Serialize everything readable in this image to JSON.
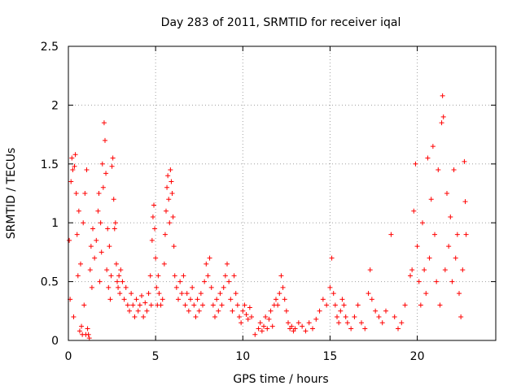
{
  "chart_data": {
    "type": "scatter",
    "title": "Day 283 of 2011, SRMTID for receiver iqal",
    "xlabel": "GPS time / hours",
    "ylabel": "SRMTID / TECUs",
    "xlim": [
      0,
      24.5
    ],
    "ylim": [
      0,
      2.5
    ],
    "xticks": [
      0,
      5,
      10,
      15,
      20
    ],
    "yticks": [
      0,
      0.5,
      1,
      1.5,
      2,
      2.5
    ],
    "xtick_labels": [
      "0",
      "5",
      "10",
      "15",
      "20"
    ],
    "ytick_labels": [
      "0",
      "0.5",
      "1",
      "1.5",
      "2",
      "2.5"
    ],
    "grid": true,
    "marker": "plus",
    "color": "#ff0000",
    "series": [
      {
        "name": "SRMTID",
        "points": [
          [
            0.05,
            0.85
          ],
          [
            0.1,
            0.35
          ],
          [
            0.15,
            1.35
          ],
          [
            0.2,
            1.55
          ],
          [
            0.25,
            1.45
          ],
          [
            0.3,
            0.2
          ],
          [
            0.35,
            1.48
          ],
          [
            0.4,
            1.58
          ],
          [
            0.45,
            1.25
          ],
          [
            0.5,
            0.9
          ],
          [
            0.55,
            0.55
          ],
          [
            0.6,
            1.1
          ],
          [
            0.65,
            0.08
          ],
          [
            0.7,
            0.65
          ],
          [
            0.75,
            0.12
          ],
          [
            0.8,
            0.05
          ],
          [
            0.85,
            1.0
          ],
          [
            0.9,
            0.3
          ],
          [
            0.95,
            1.25
          ],
          [
            1.0,
            0.05
          ],
          [
            1.05,
            1.45
          ],
          [
            1.1,
            0.1
          ],
          [
            1.15,
            0.05
          ],
          [
            1.2,
            0.02
          ],
          [
            1.25,
            0.6
          ],
          [
            1.3,
            0.8
          ],
          [
            1.35,
            0.45
          ],
          [
            1.4,
            0.95
          ],
          [
            1.5,
            0.7
          ],
          [
            1.6,
            0.85
          ],
          [
            1.7,
            1.1
          ],
          [
            1.75,
            1.25
          ],
          [
            1.8,
            0.5
          ],
          [
            1.85,
            1.0
          ],
          [
            1.9,
            0.75
          ],
          [
            1.95,
            1.5
          ],
          [
            2.0,
            1.3
          ],
          [
            2.05,
            1.85
          ],
          [
            2.1,
            1.7
          ],
          [
            2.15,
            1.42
          ],
          [
            2.2,
            0.6
          ],
          [
            2.25,
            0.95
          ],
          [
            2.3,
            0.45
          ],
          [
            2.35,
            0.8
          ],
          [
            2.4,
            0.35
          ],
          [
            2.45,
            0.55
          ],
          [
            2.5,
            1.48
          ],
          [
            2.55,
            1.55
          ],
          [
            2.6,
            1.2
          ],
          [
            2.65,
            0.95
          ],
          [
            2.7,
            1.0
          ],
          [
            2.75,
            0.65
          ],
          [
            2.8,
            0.5
          ],
          [
            2.85,
            0.45
          ],
          [
            2.9,
            0.55
          ],
          [
            2.95,
            0.4
          ],
          [
            3.0,
            0.6
          ],
          [
            3.1,
            0.5
          ],
          [
            3.2,
            0.35
          ],
          [
            3.3,
            0.45
          ],
          [
            3.4,
            0.3
          ],
          [
            3.5,
            0.25
          ],
          [
            3.6,
            0.4
          ],
          [
            3.7,
            0.3
          ],
          [
            3.8,
            0.2
          ],
          [
            3.9,
            0.35
          ],
          [
            4.0,
            0.25
          ],
          [
            4.1,
            0.3
          ],
          [
            4.2,
            0.38
          ],
          [
            4.3,
            0.2
          ],
          [
            4.4,
            0.32
          ],
          [
            4.5,
            0.25
          ],
          [
            4.6,
            0.4
          ],
          [
            4.7,
            0.55
          ],
          [
            4.75,
            0.3
          ],
          [
            4.8,
            0.85
          ],
          [
            4.85,
            1.05
          ],
          [
            4.9,
            1.15
          ],
          [
            4.95,
            0.95
          ],
          [
            5.0,
            0.7
          ],
          [
            5.05,
            0.45
          ],
          [
            5.1,
            0.3
          ],
          [
            5.15,
            0.55
          ],
          [
            5.2,
            0.4
          ],
          [
            5.3,
            0.3
          ],
          [
            5.4,
            0.35
          ],
          [
            5.5,
            0.65
          ],
          [
            5.55,
            0.9
          ],
          [
            5.6,
            1.1
          ],
          [
            5.65,
            1.3
          ],
          [
            5.7,
            1.4
          ],
          [
            5.75,
            1.2
          ],
          [
            5.8,
            1.0
          ],
          [
            5.85,
            1.45
          ],
          [
            5.9,
            1.35
          ],
          [
            5.95,
            1.25
          ],
          [
            6.0,
            1.05
          ],
          [
            6.05,
            0.8
          ],
          [
            6.1,
            0.55
          ],
          [
            6.2,
            0.45
          ],
          [
            6.3,
            0.35
          ],
          [
            6.4,
            0.5
          ],
          [
            6.5,
            0.4
          ],
          [
            6.6,
            0.55
          ],
          [
            6.7,
            0.3
          ],
          [
            6.8,
            0.4
          ],
          [
            6.9,
            0.25
          ],
          [
            7.0,
            0.35
          ],
          [
            7.1,
            0.45
          ],
          [
            7.2,
            0.3
          ],
          [
            7.3,
            0.2
          ],
          [
            7.4,
            0.35
          ],
          [
            7.5,
            0.25
          ],
          [
            7.6,
            0.4
          ],
          [
            7.7,
            0.3
          ],
          [
            7.8,
            0.5
          ],
          [
            7.9,
            0.65
          ],
          [
            8.0,
            0.55
          ],
          [
            8.1,
            0.7
          ],
          [
            8.2,
            0.45
          ],
          [
            8.3,
            0.3
          ],
          [
            8.4,
            0.2
          ],
          [
            8.5,
            0.35
          ],
          [
            8.6,
            0.25
          ],
          [
            8.7,
            0.4
          ],
          [
            8.8,
            0.3
          ],
          [
            8.9,
            0.45
          ],
          [
            9.0,
            0.55
          ],
          [
            9.1,
            0.65
          ],
          [
            9.2,
            0.5
          ],
          [
            9.3,
            0.35
          ],
          [
            9.4,
            0.25
          ],
          [
            9.5,
            0.55
          ],
          [
            9.6,
            0.4
          ],
          [
            9.7,
            0.3
          ],
          [
            9.8,
            0.2
          ],
          [
            9.9,
            0.15
          ],
          [
            10.0,
            0.25
          ],
          [
            10.1,
            0.3
          ],
          [
            10.2,
            0.22
          ],
          [
            10.3,
            0.18
          ],
          [
            10.4,
            0.28
          ],
          [
            10.5,
            0.2
          ],
          [
            10.7,
            0.05
          ],
          [
            10.9,
            0.1
          ],
          [
            11.0,
            0.15
          ],
          [
            11.1,
            0.08
          ],
          [
            11.2,
            0.12
          ],
          [
            11.3,
            0.2
          ],
          [
            11.4,
            0.1
          ],
          [
            11.5,
            0.18
          ],
          [
            11.6,
            0.25
          ],
          [
            11.7,
            0.12
          ],
          [
            11.8,
            0.3
          ],
          [
            11.9,
            0.35
          ],
          [
            12.0,
            0.3
          ],
          [
            12.1,
            0.4
          ],
          [
            12.2,
            0.55
          ],
          [
            12.3,
            0.45
          ],
          [
            12.4,
            0.35
          ],
          [
            12.5,
            0.25
          ],
          [
            12.6,
            0.15
          ],
          [
            12.7,
            0.1
          ],
          [
            12.8,
            0.12
          ],
          [
            12.9,
            0.08
          ],
          [
            13.0,
            0.1
          ],
          [
            13.2,
            0.15
          ],
          [
            13.4,
            0.12
          ],
          [
            13.6,
            0.08
          ],
          [
            13.8,
            0.15
          ],
          [
            14.0,
            0.1
          ],
          [
            14.2,
            0.18
          ],
          [
            14.4,
            0.25
          ],
          [
            14.6,
            0.35
          ],
          [
            14.8,
            0.3
          ],
          [
            15.0,
            0.45
          ],
          [
            15.1,
            0.7
          ],
          [
            15.2,
            0.4
          ],
          [
            15.3,
            0.3
          ],
          [
            15.4,
            0.2
          ],
          [
            15.5,
            0.15
          ],
          [
            15.6,
            0.25
          ],
          [
            15.7,
            0.35
          ],
          [
            15.8,
            0.3
          ],
          [
            15.9,
            0.2
          ],
          [
            16.0,
            0.15
          ],
          [
            16.2,
            0.1
          ],
          [
            16.4,
            0.2
          ],
          [
            16.6,
            0.3
          ],
          [
            16.8,
            0.15
          ],
          [
            17.0,
            0.1
          ],
          [
            17.2,
            0.4
          ],
          [
            17.3,
            0.6
          ],
          [
            17.4,
            0.35
          ],
          [
            17.6,
            0.25
          ],
          [
            17.8,
            0.2
          ],
          [
            18.0,
            0.15
          ],
          [
            18.2,
            0.25
          ],
          [
            18.5,
            0.9
          ],
          [
            18.7,
            0.2
          ],
          [
            18.9,
            0.1
          ],
          [
            19.1,
            0.15
          ],
          [
            19.3,
            0.3
          ],
          [
            19.6,
            0.55
          ],
          [
            19.7,
            0.6
          ],
          [
            19.8,
            1.1
          ],
          [
            19.9,
            1.5
          ],
          [
            20.0,
            0.8
          ],
          [
            20.1,
            0.5
          ],
          [
            20.2,
            0.3
          ],
          [
            20.3,
            1.0
          ],
          [
            20.4,
            0.6
          ],
          [
            20.5,
            0.4
          ],
          [
            20.6,
            1.55
          ],
          [
            20.7,
            0.7
          ],
          [
            20.8,
            1.2
          ],
          [
            20.9,
            1.65
          ],
          [
            21.0,
            0.9
          ],
          [
            21.1,
            0.5
          ],
          [
            21.2,
            1.45
          ],
          [
            21.3,
            0.3
          ],
          [
            21.4,
            1.85
          ],
          [
            21.45,
            2.08
          ],
          [
            21.5,
            1.9
          ],
          [
            21.6,
            0.6
          ],
          [
            21.7,
            1.25
          ],
          [
            21.8,
            0.8
          ],
          [
            21.9,
            1.05
          ],
          [
            22.0,
            0.5
          ],
          [
            22.1,
            1.45
          ],
          [
            22.2,
            0.7
          ],
          [
            22.3,
            0.9
          ],
          [
            22.4,
            0.4
          ],
          [
            22.5,
            0.2
          ],
          [
            22.6,
            0.6
          ],
          [
            22.7,
            1.52
          ],
          [
            22.75,
            1.18
          ],
          [
            22.8,
            0.9
          ]
        ]
      }
    ]
  }
}
